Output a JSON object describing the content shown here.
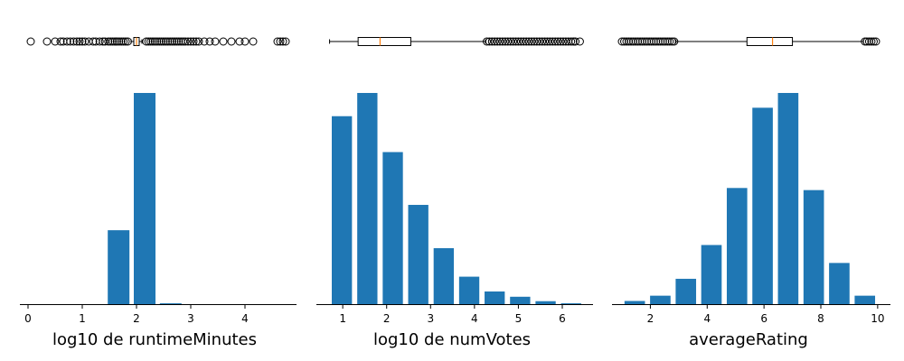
{
  "chart_data": [
    {
      "type": "bar",
      "xlabel": "log10 de runtimeMinutes",
      "ylabel": "",
      "xlim": [
        -0.15,
        4.95
      ],
      "ylim": [
        0,
        1.0
      ],
      "xticks": [
        "0",
        "1",
        "2",
        "3",
        "4"
      ],
      "bar_centers": [
        1.67,
        2.15,
        2.63
      ],
      "bar_width": 0.4,
      "values": [
        0.35,
        1.0,
        0.004
      ],
      "bar_color": "#1f77b4",
      "boxplot": {
        "q1": 1.95,
        "median": 2.0,
        "q3": 2.05,
        "whisker_low": 1.9,
        "whisker_high": 2.1,
        "outliers": [
          0.05,
          0.35,
          0.5,
          0.6,
          0.65,
          0.72,
          0.78,
          0.84,
          0.9,
          0.95,
          1.0,
          1.05,
          1.12,
          1.2,
          1.25,
          1.32,
          1.38,
          1.42,
          1.48,
          1.52,
          1.56,
          1.6,
          1.64,
          1.68,
          1.72,
          1.76,
          1.8,
          1.84,
          2.18,
          2.22,
          2.26,
          2.3,
          2.34,
          2.38,
          2.42,
          2.46,
          2.5,
          2.54,
          2.58,
          2.62,
          2.66,
          2.7,
          2.74,
          2.78,
          2.82,
          2.86,
          2.9,
          2.95,
          3.0,
          3.05,
          3.1,
          3.15,
          3.25,
          3.35,
          3.45,
          3.6,
          3.75,
          3.9,
          4.0,
          4.15,
          4.6,
          4.65,
          4.7,
          4.75
        ]
      }
    },
    {
      "type": "bar",
      "xlabel": "log10 de numVotes",
      "ylabel": "",
      "xlim": [
        0.4,
        6.7
      ],
      "ylim": [
        0,
        1.0
      ],
      "xticks": [
        "1",
        "2",
        "3",
        "4",
        "5",
        "6"
      ],
      "bar_centers": [
        0.98,
        1.56,
        2.14,
        2.72,
        3.3,
        3.88,
        4.46,
        5.04,
        5.62,
        6.2
      ],
      "bar_width": 0.46,
      "values": [
        0.89,
        1.0,
        0.72,
        0.47,
        0.265,
        0.13,
        0.06,
        0.035,
        0.014,
        0.004
      ],
      "bar_color": "#1f77b4",
      "boxplot": {
        "q1": 1.35,
        "median": 1.85,
        "q3": 2.55,
        "whisker_low": 0.7,
        "whisker_high": 4.25,
        "outliers": [
          4.28,
          4.34,
          4.4,
          4.46,
          4.52,
          4.58,
          4.64,
          4.7,
          4.76,
          4.82,
          4.88,
          4.94,
          5.0,
          5.06,
          5.12,
          5.18,
          5.24,
          5.3,
          5.36,
          5.42,
          5.48,
          5.54,
          5.6,
          5.66,
          5.72,
          5.78,
          5.84,
          5.9,
          5.96,
          6.02,
          6.08,
          6.14,
          6.2,
          6.25,
          6.3,
          6.4
        ]
      }
    },
    {
      "type": "bar",
      "xlabel": "averageRating",
      "ylabel": "",
      "xlim": [
        0.65,
        10.45
      ],
      "ylim": [
        0,
        1.0
      ],
      "xticks": [
        "2",
        "4",
        "6",
        "8",
        "10"
      ],
      "bar_centers": [
        1.45,
        2.35,
        3.25,
        4.15,
        5.05,
        5.95,
        6.85,
        7.75,
        8.65,
        9.55
      ],
      "bar_width": 0.72,
      "values": [
        0.015,
        0.04,
        0.12,
        0.28,
        0.55,
        0.93,
        1.0,
        0.54,
        0.195,
        0.04
      ],
      "bar_color": "#1f77b4",
      "boxplot": {
        "q1": 5.4,
        "median": 6.3,
        "q3": 7.0,
        "whisker_low": 2.9,
        "whisker_high": 9.5,
        "outliers": [
          1.0,
          1.08,
          1.16,
          1.24,
          1.32,
          1.4,
          1.48,
          1.56,
          1.64,
          1.72,
          1.8,
          1.88,
          1.96,
          2.04,
          2.12,
          2.2,
          2.28,
          2.36,
          2.44,
          2.52,
          2.6,
          2.68,
          2.76,
          2.84,
          9.55,
          9.62,
          9.7,
          9.78,
          9.86,
          9.94
        ]
      }
    }
  ],
  "colors": {
    "bar": "#1f77b4",
    "median": "#ff7f0e",
    "outlier_edge": "#000000",
    "box_edge": "#000000"
  }
}
